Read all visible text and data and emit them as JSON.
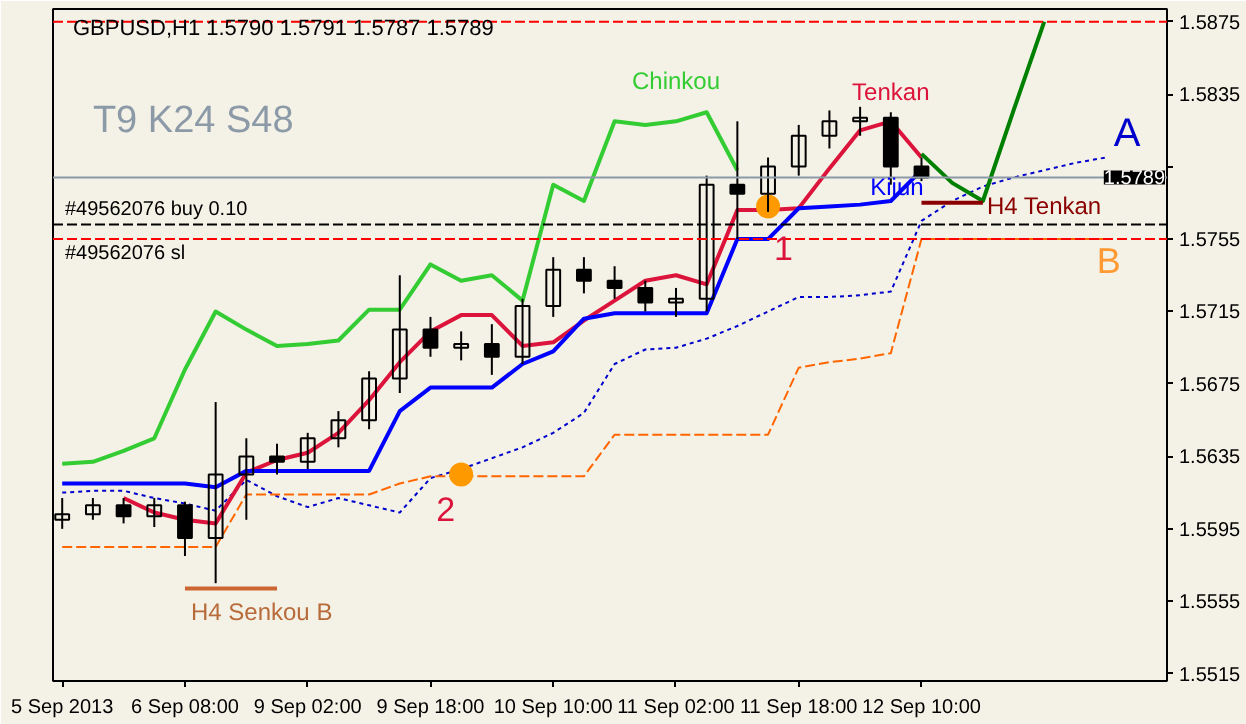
{
  "chart_data": {
    "type": "candlestick",
    "title": "GBPUSD,H1 1.5790 1.5791 1.5787 1.5789",
    "categories": [
      "5 Sep 2013",
      null,
      null,
      null,
      "6 Sep 08:00",
      null,
      null,
      null,
      "9 Sep 02:00",
      null,
      null,
      null,
      "9 Sep 18:00",
      null,
      null,
      null,
      "10 Sep 10:00",
      null,
      null,
      null,
      "11 Sep 02:00",
      null,
      null,
      null,
      "11 Sep 18:00",
      null,
      null,
      null,
      "12 Sep 10:00",
      null,
      null,
      null,
      null,
      null,
      null,
      null,
      null
    ],
    "ohlc": [
      [
        1.56,
        1.5612,
        1.5595,
        1.5603
      ],
      [
        1.5603,
        1.5612,
        1.56,
        1.5608
      ],
      [
        1.5608,
        1.5612,
        1.5598,
        1.5602
      ],
      [
        1.5602,
        1.5612,
        1.5596,
        1.5608
      ],
      [
        1.5608,
        1.561,
        1.558,
        1.559
      ],
      [
        1.559,
        1.5665,
        1.5565,
        1.5625
      ],
      [
        1.5625,
        1.5645,
        1.56,
        1.5635
      ],
      [
        1.5635,
        1.5642,
        1.5625,
        1.5632
      ],
      [
        1.5632,
        1.5648,
        1.5628,
        1.5645
      ],
      [
        1.5645,
        1.566,
        1.564,
        1.5655
      ],
      [
        1.5655,
        1.5682,
        1.565,
        1.5678
      ],
      [
        1.5678,
        1.5735,
        1.567,
        1.5705
      ],
      [
        1.5705,
        1.5712,
        1.569,
        1.5695
      ],
      [
        1.5695,
        1.5704,
        1.5688,
        1.5697
      ],
      [
        1.5697,
        1.5708,
        1.568,
        1.569
      ],
      [
        1.569,
        1.5722,
        1.5686,
        1.5718
      ],
      [
        1.5718,
        1.5745,
        1.5712,
        1.5738
      ],
      [
        1.5738,
        1.5745,
        1.5725,
        1.5732
      ],
      [
        1.5732,
        1.574,
        1.5722,
        1.5728
      ],
      [
        1.5728,
        1.5732,
        1.5715,
        1.572
      ],
      [
        1.572,
        1.5728,
        1.5712,
        1.5722
      ],
      [
        1.5722,
        1.579,
        1.5715,
        1.5785
      ],
      [
        1.5785,
        1.582,
        1.5755,
        1.578
      ],
      [
        1.578,
        1.58,
        1.577,
        1.5795
      ],
      [
        1.5795,
        1.5818,
        1.579,
        1.5812
      ],
      [
        1.5812,
        1.5826,
        1.5805,
        1.582
      ],
      [
        1.582,
        1.5828,
        1.5812,
        1.5822
      ],
      [
        1.5822,
        1.5825,
        1.5785,
        1.5795
      ],
      [
        1.5795,
        1.58,
        1.5787,
        1.5789
      ],
      null,
      null,
      null,
      null,
      null,
      null,
      null,
      null
    ],
    "series": [
      {
        "type": "line",
        "color": "#0000cc",
        "line_style": "dotted",
        "values": [
          1.5615,
          1.5616,
          1.5616,
          1.5612,
          1.5609,
          1.5605,
          1.5622,
          1.5613,
          1.5607,
          1.5612,
          1.5608,
          1.5604,
          1.5623,
          1.5628,
          1.5634,
          1.564,
          1.5648,
          1.5659,
          1.5686,
          1.5694,
          1.5695,
          1.57,
          1.5707,
          1.5715,
          1.5723,
          1.5723,
          1.5724,
          1.5726,
          1.5765,
          1.5776,
          1.5784,
          1.5789,
          1.5793,
          1.5797,
          1.58,
          null,
          null
        ]
      },
      {
        "type": "line",
        "color": "#ff6600",
        "line_style": "dashed",
        "values": [
          1.5585,
          1.5585,
          1.5585,
          1.5585,
          1.5585,
          1.5585,
          1.5614,
          1.5614,
          1.5614,
          1.5614,
          1.5614,
          1.562,
          1.5624,
          1.5624,
          1.5624,
          1.5624,
          1.5624,
          1.5624,
          1.5647,
          1.5647,
          1.5647,
          1.5647,
          1.5647,
          1.5647,
          1.5684,
          1.5687,
          1.5689,
          1.5692,
          1.5755,
          1.5755,
          1.5755,
          1.5755,
          1.5755,
          1.5755,
          1.5755,
          null,
          null
        ]
      },
      {
        "type": "line",
        "color": "#dc143c",
        "line_style": "solid",
        "values": [
          null,
          null,
          1.5612,
          1.5604,
          1.56,
          1.5598,
          1.5626,
          1.5633,
          1.5637,
          1.5648,
          1.5666,
          1.5687,
          1.5704,
          1.5713,
          1.5713,
          1.5696,
          1.5698,
          1.571,
          1.5721,
          1.5732,
          1.5735,
          1.573,
          1.5771,
          1.5771,
          1.5772,
          1.5794,
          1.5815,
          1.582,
          1.58,
          null,
          null,
          null,
          null,
          null,
          null,
          null,
          null
        ]
      },
      {
        "type": "line",
        "color": "#0000ff",
        "line_style": "solid",
        "values": [
          1.562,
          1.562,
          1.562,
          1.562,
          1.562,
          1.5618,
          1.5627,
          1.5627,
          1.5627,
          1.5627,
          1.5627,
          1.566,
          1.5673,
          1.5673,
          1.5673,
          1.5686,
          1.5693,
          1.5711,
          1.5714,
          1.5714,
          1.5714,
          1.5714,
          1.5755,
          1.5755,
          1.5772,
          1.5773,
          1.5774,
          1.5776,
          1.5793,
          null,
          null,
          null,
          null,
          null,
          null,
          null,
          null
        ]
      },
      {
        "type": "line",
        "color": "#33cc33",
        "line_style": "solid",
        "values": [
          1.5631,
          1.5632,
          1.5638,
          1.5645,
          1.5683,
          1.5715,
          1.5705,
          1.5696,
          1.5697,
          1.5699,
          1.5716,
          1.5716,
          1.5741,
          1.5732,
          1.5735,
          1.5721,
          1.5785,
          1.5776,
          1.582,
          1.5818,
          1.582,
          1.5825,
          1.5793,
          null,
          null,
          null,
          null,
          null,
          null,
          null,
          null,
          null,
          null,
          null,
          null,
          null,
          null
        ]
      },
      {
        "type": "line",
        "color": "#008000",
        "line_style": "solid",
        "values": [
          null,
          null,
          null,
          null,
          null,
          null,
          null,
          null,
          null,
          null,
          null,
          null,
          null,
          null,
          null,
          null,
          null,
          null,
          null,
          null,
          null,
          null,
          null,
          null,
          null,
          null,
          null,
          null,
          1.5802,
          1.5786,
          1.5776,
          1.5826,
          1.5875,
          null,
          null,
          null,
          null
        ]
      },
      {
        "type": "line",
        "color": "#8b0000",
        "line_style": "solid",
        "values": [
          null,
          null,
          null,
          null,
          null,
          null,
          null,
          null,
          null,
          null,
          null,
          null,
          null,
          null,
          null,
          null,
          null,
          null,
          null,
          null,
          null,
          null,
          null,
          null,
          null,
          null,
          null,
          null,
          1.5775,
          1.5775,
          1.5775,
          null,
          null,
          null,
          null,
          null,
          null
        ]
      },
      {
        "type": "line",
        "color": "#cc6633",
        "line_style": "solid",
        "values": [
          null,
          null,
          null,
          null,
          1.5562,
          1.5562,
          1.5562,
          1.5562,
          null,
          null,
          null,
          null,
          null,
          null,
          null,
          null,
          null,
          null,
          null,
          null,
          null,
          null,
          null,
          null,
          null,
          null,
          null,
          null,
          null,
          null,
          null,
          null,
          null,
          null,
          null,
          null,
          null
        ]
      },
      {
        "type": "scatter",
        "color": "#ff9900",
        "marker": "circle",
        "values": [
          null,
          null,
          null,
          null,
          null,
          null,
          null,
          null,
          null,
          null,
          null,
          null,
          null,
          1.5625,
          null,
          null,
          null,
          null,
          null,
          null,
          null,
          null,
          null,
          1.5773,
          null,
          null,
          null,
          null,
          null,
          null,
          null,
          null,
          null,
          null,
          null,
          null,
          null
        ]
      }
    ],
    "ref_lines": [
      {
        "axis": "y",
        "value": 1.5875,
        "label": null,
        "color": "#ff0000",
        "line_style": "dashed"
      },
      {
        "axis": "y",
        "value": 1.5789,
        "label": "1.5789",
        "color": "#8c9aa8",
        "line_style": "solid"
      },
      {
        "axis": "y",
        "value": 1.5763,
        "label": "#49562076 buy 0.10",
        "color": "#000000",
        "line_style": "dashed"
      },
      {
        "axis": "y",
        "value": 1.5755,
        "label": "#49562076 sl",
        "color": "#ff0000",
        "line_style": "dashed"
      }
    ],
    "annotations": [
      "T9 K24 S48",
      "Chinkou",
      "Tenkan",
      "Kijun",
      "H4 Tenkan",
      "H4 Senkou B",
      "1",
      "2",
      "A",
      "B"
    ],
    "ylim": [
      1.5511,
      1.5882
    ],
    "yticks": [
      1.5515,
      1.5555,
      1.5595,
      1.5635,
      1.5675,
      1.5715,
      1.5755,
      {
        "value": 1.5795,
        "label": null
      },
      1.5835,
      1.5875
    ],
    "grid": false
  }
}
